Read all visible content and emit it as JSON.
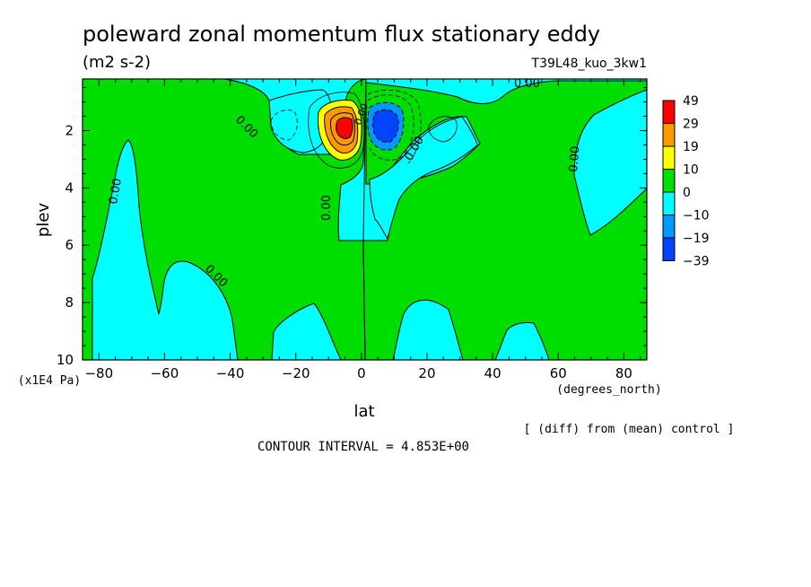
{
  "chart_data": {
    "type": "contour",
    "title": "poleward zonal momentum flux stationary eddy",
    "units": "(m2 s-2)",
    "experiment": "T39L48_kuo_3kw1",
    "xlabel": "lat",
    "x_units": "(degrees_north)",
    "ylabel": "plev",
    "y_units": "(x1E4 Pa)",
    "xlim": [
      -85,
      87
    ],
    "ylim": [
      10,
      0.2
    ],
    "x_ticks": [
      -80,
      -60,
      -40,
      -20,
      0,
      20,
      40,
      60,
      80
    ],
    "y_ticks": [
      2,
      4,
      6,
      8,
      10
    ],
    "contour_interval_text": "CONTOUR INTERVAL = 4.853E+00",
    "note": "[ (diff) from (mean) control ]",
    "contour_labels": [
      "0.00",
      "0.00",
      "0.00",
      "0.00",
      "0.00",
      "0.00",
      "0.00",
      "0.00"
    ],
    "legend": {
      "levels": [
        "49",
        "29",
        "19",
        "10",
        "0",
        "-10",
        "-19",
        "-39"
      ],
      "colors": [
        "#ff0000",
        "#ff9900",
        "#ffff00",
        "#00dd00",
        "#00ffff",
        "#0099ff",
        "#0044ff"
      ]
    },
    "extrema": [
      {
        "type": "max",
        "lat": -6,
        "plev": 1.8,
        "approx_value": 49
      },
      {
        "type": "min",
        "lat": 7,
        "plev": 1.8,
        "approx_value": -39
      }
    ]
  }
}
